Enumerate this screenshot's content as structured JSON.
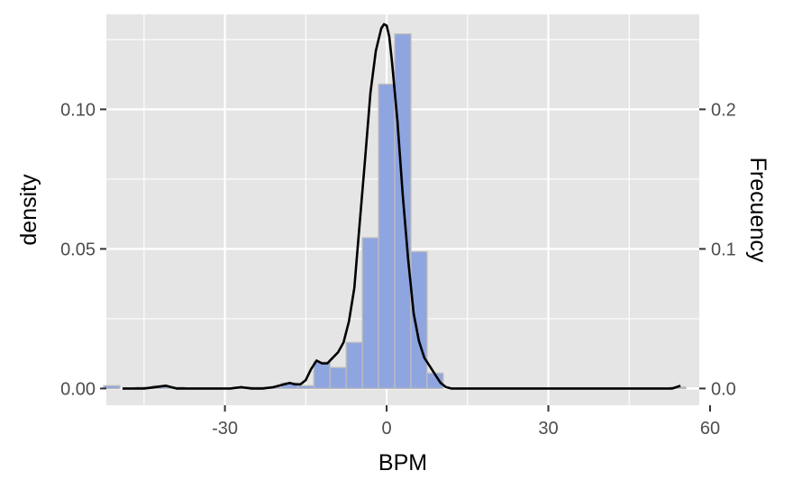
{
  "chart_data": {
    "type": "bar",
    "xlabel": "BPM",
    "ylabel": "density",
    "ylabel_right": "Frecuency",
    "xlim": [
      -52,
      58
    ],
    "ylim": [
      -0.006,
      0.134
    ],
    "x_ticks": [
      -30,
      0,
      30,
      60
    ],
    "x_tick_labels": [
      "-30",
      "0",
      "30",
      "60"
    ],
    "y_ticks": [
      0.0,
      0.05,
      0.1
    ],
    "y_tick_labels": [
      "0.00",
      "0.05",
      "0.10"
    ],
    "y2_ticks": [
      0.0,
      0.1,
      0.2
    ],
    "y2_tick_labels": [
      "0.0",
      "0.1",
      "0.2"
    ],
    "y2_per_y": 2,
    "grid": true,
    "bin_width": 3,
    "histogram": {
      "name": "",
      "bins_x": [
        -51,
        -45,
        -42,
        -39,
        -27,
        -24,
        -21,
        -18,
        -15,
        -12,
        -9,
        -6,
        -3,
        0,
        3,
        6,
        9,
        54
      ],
      "density": [
        0.001,
        0.0005,
        0.001,
        0.0005,
        0.0005,
        0.0005,
        0.0005,
        0.002,
        0.001,
        0.0095,
        0.0075,
        0.0165,
        0.054,
        0.109,
        0.127,
        0.049,
        0.0055,
        0.0005
      ]
    },
    "density_curve": {
      "name": "",
      "x": [
        -49,
        -47,
        -45,
        -43,
        -41,
        -39,
        -37,
        -35,
        -33,
        -31,
        -29,
        -27,
        -25,
        -23,
        -21,
        -19,
        -18,
        -17,
        -16,
        -15,
        -14,
        -13,
        -12,
        -11,
        -10,
        -9,
        -8,
        -7,
        -6,
        -5,
        -4,
        -3,
        -2,
        -1,
        -0.5,
        0,
        0.5,
        1,
        2,
        3,
        4,
        5,
        6,
        7,
        8,
        9,
        10,
        11,
        12,
        13,
        15,
        20,
        25,
        30,
        35,
        40,
        45,
        50,
        53,
        54.5
      ],
      "y": [
        0.0,
        0.0,
        0.0,
        0.0005,
        0.001,
        0.0,
        0.0,
        0.0,
        0.0,
        0.0,
        0.0,
        0.0005,
        0.0,
        0.0,
        0.0005,
        0.0015,
        0.002,
        0.0015,
        0.0015,
        0.003,
        0.007,
        0.01,
        0.009,
        0.009,
        0.011,
        0.013,
        0.0165,
        0.024,
        0.036,
        0.059,
        0.082,
        0.106,
        0.121,
        0.129,
        0.1305,
        0.13,
        0.126,
        0.117,
        0.096,
        0.069,
        0.046,
        0.027,
        0.017,
        0.011,
        0.008,
        0.005,
        0.002,
        0.0005,
        0.0,
        0.0,
        0.0,
        0.0,
        0.0,
        0.0,
        0.0,
        0.0,
        0.0,
        0.0,
        0.0,
        0.001
      ]
    },
    "colors": {
      "panel_bg": "#e5e5e5",
      "grid": "#ffffff",
      "bar_fill": "#8fa5e0",
      "bar_outline": "#bdbdbd",
      "curve": "#000000"
    }
  }
}
